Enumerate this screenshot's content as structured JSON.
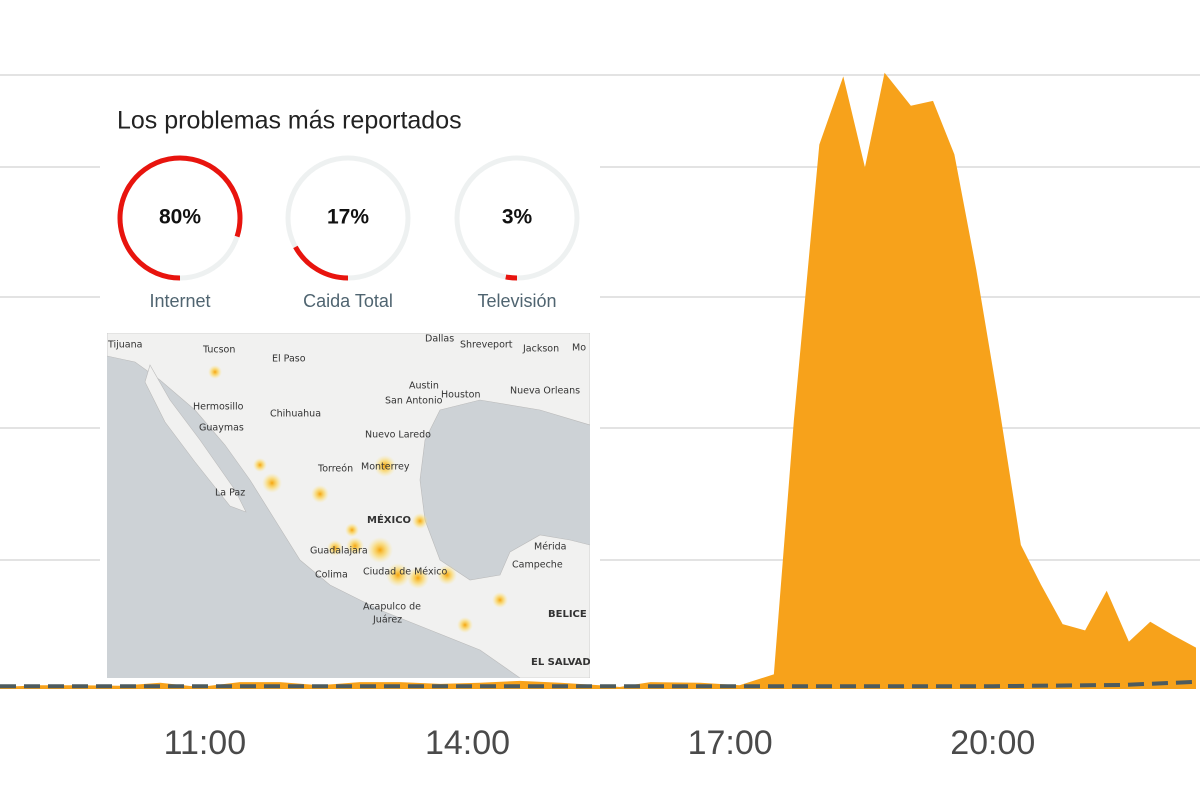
{
  "chart_data": {
    "type": "area",
    "x": [
      8.66,
      9.11,
      9.57,
      10.03,
      10.49,
      10.94,
      11.4,
      11.86,
      12.31,
      12.77,
      13.23,
      13.69,
      14.14,
      14.6,
      15.06,
      15.51,
      15.74,
      16.09,
      16.66,
      17.11,
      17.51,
      17.74,
      18.03,
      18.29,
      18.54,
      18.77,
      19.06,
      19.31,
      19.55,
      19.8,
      20.05,
      20.31,
      20.54,
      20.79,
      21.06,
      21.3,
      21.55,
      21.8,
      22.05,
      22.31
    ],
    "series": [
      {
        "color": "#f7a21b",
        "values": [
          0,
          0.3,
          0.3,
          0.2,
          0.7,
          0,
          0.8,
          0.8,
          0.3,
          0.8,
          0.8,
          0.5,
          0.7,
          1,
          0.7,
          0.3,
          0,
          0.8,
          0.7,
          0.3,
          2.1,
          43.7,
          88.6,
          99.2,
          84.2,
          100,
          94.8,
          95.6,
          87,
          68.2,
          47,
          23.3,
          16.8,
          10.3,
          9.2,
          15.5,
          7.3,
          10.6,
          8.5,
          6.5
        ]
      },
      {
        "color": "#4d5b5e",
        "dashed": true,
        "x": [
          8.66,
          11,
          14,
          16,
          17,
          20,
          21.5,
          22.31
        ],
        "values": [
          0.3,
          0.3,
          0.3,
          0.3,
          0.3,
          0.3,
          0.5,
          1
        ]
      }
    ],
    "xlim": [
      8.66,
      22.31
    ],
    "ylim": [
      0,
      100
    ],
    "xticks": [
      {
        "value": 11,
        "label": "11:00"
      },
      {
        "value": 14,
        "label": "14:00"
      },
      {
        "value": 17,
        "label": "17:00"
      },
      {
        "value": 20,
        "label": "20:00"
      }
    ]
  },
  "problems": {
    "title": "Los problemas más reportados",
    "items": [
      {
        "label": "Internet",
        "value": 80,
        "value_label": "80%"
      },
      {
        "label": "Caida Total",
        "value": 17,
        "value_label": "17%"
      },
      {
        "label": "Televisión",
        "value": 3,
        "value_label": "3%"
      }
    ]
  },
  "map": {
    "labels": [
      "Tijuana",
      "Tucson",
      "El Paso",
      "Dallas",
      "Shreveport",
      "Jackson",
      "Mo",
      "Austin",
      "Houston",
      "Nueva Orleans",
      "San Antonio",
      "Hermosillo",
      "Chihuahua",
      "Guaymas",
      "Nuevo Laredo",
      "Torreón",
      "Monterrey",
      "La Paz",
      "MÉXICO",
      "Mérida",
      "Guadalajara",
      "Campeche",
      "Colima",
      "Ciudad de México",
      "BELICE",
      "Acapulco de",
      "Juárez",
      "EL SALVADOR"
    ]
  }
}
